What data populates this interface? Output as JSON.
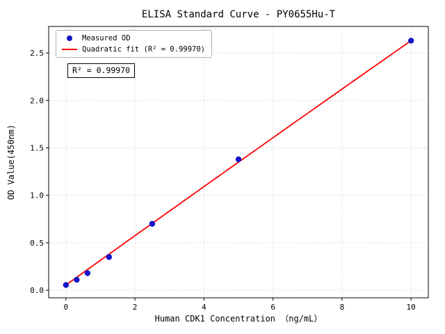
{
  "chart_data": {
    "type": "scatter",
    "title": "ELISA Standard Curve - PY0655Hu-T",
    "xlabel": "Human CDK1 Concentration （ng/mL）",
    "ylabel": "OD Value(450nm)",
    "xlim": [
      -0.5,
      10.5
    ],
    "ylim": [
      -0.08,
      2.78
    ],
    "xticks": [
      0,
      2,
      4,
      6,
      8,
      10
    ],
    "xticklabels": [
      "0",
      "2",
      "4",
      "6",
      "8",
      "10"
    ],
    "yticks": [
      0.0,
      0.5,
      1.0,
      1.5,
      2.0,
      2.5
    ],
    "yticklabels": [
      "0.0",
      "0.5",
      "1.0",
      "1.5",
      "2.0",
      "2.5"
    ],
    "grid": true,
    "grid_style": "dotted",
    "legend_position": "upper-left",
    "annotation": "R² = 0.99970",
    "colors": {
      "points": "#1414cc",
      "fit_line": "#ff0000",
      "grid": "#b5b5b5",
      "spine": "#000000"
    },
    "series": [
      {
        "name": "Measured OD",
        "type": "scatter",
        "color": "#1414cc",
        "x": [
          0,
          0.3125,
          0.625,
          1.25,
          2.5,
          5,
          10
        ],
        "y": [
          0.055,
          0.11,
          0.18,
          0.35,
          0.7,
          1.38,
          2.63
        ]
      },
      {
        "name": "Quadratic fit (R² = 0.99970)",
        "type": "line",
        "color": "#ff0000",
        "fit_coefficients": {
          "a": -0.0003,
          "b": 0.2605,
          "c": 0.055
        },
        "x_range": [
          0,
          10
        ],
        "r_squared": 0.9997
      }
    ]
  }
}
